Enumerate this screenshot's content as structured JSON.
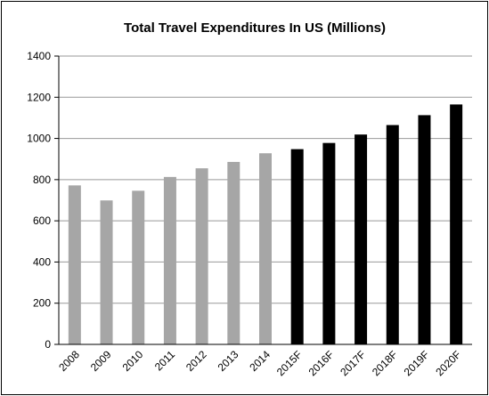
{
  "chart_data": {
    "type": "bar",
    "title": "Total Travel Expenditures In US (Millions)",
    "xlabel": "",
    "ylabel": "",
    "ylim": [
      0,
      1400
    ],
    "yticks": [
      0,
      200,
      400,
      600,
      800,
      1000,
      1200,
      1400
    ],
    "grid": true,
    "legend": "none",
    "categories": [
      "2008",
      "2009",
      "2010",
      "2011",
      "2012",
      "2013",
      "2014",
      "2015F",
      "2016F",
      "2017F",
      "2018F",
      "2019F",
      "2020F"
    ],
    "values": [
      772,
      699,
      746,
      813,
      855,
      886,
      928,
      948,
      978,
      1019,
      1065,
      1113,
      1165
    ],
    "bar_colors": {
      "actual": "#a6a6a6",
      "forecast": "#000000"
    },
    "forecast_start_index": 7
  }
}
